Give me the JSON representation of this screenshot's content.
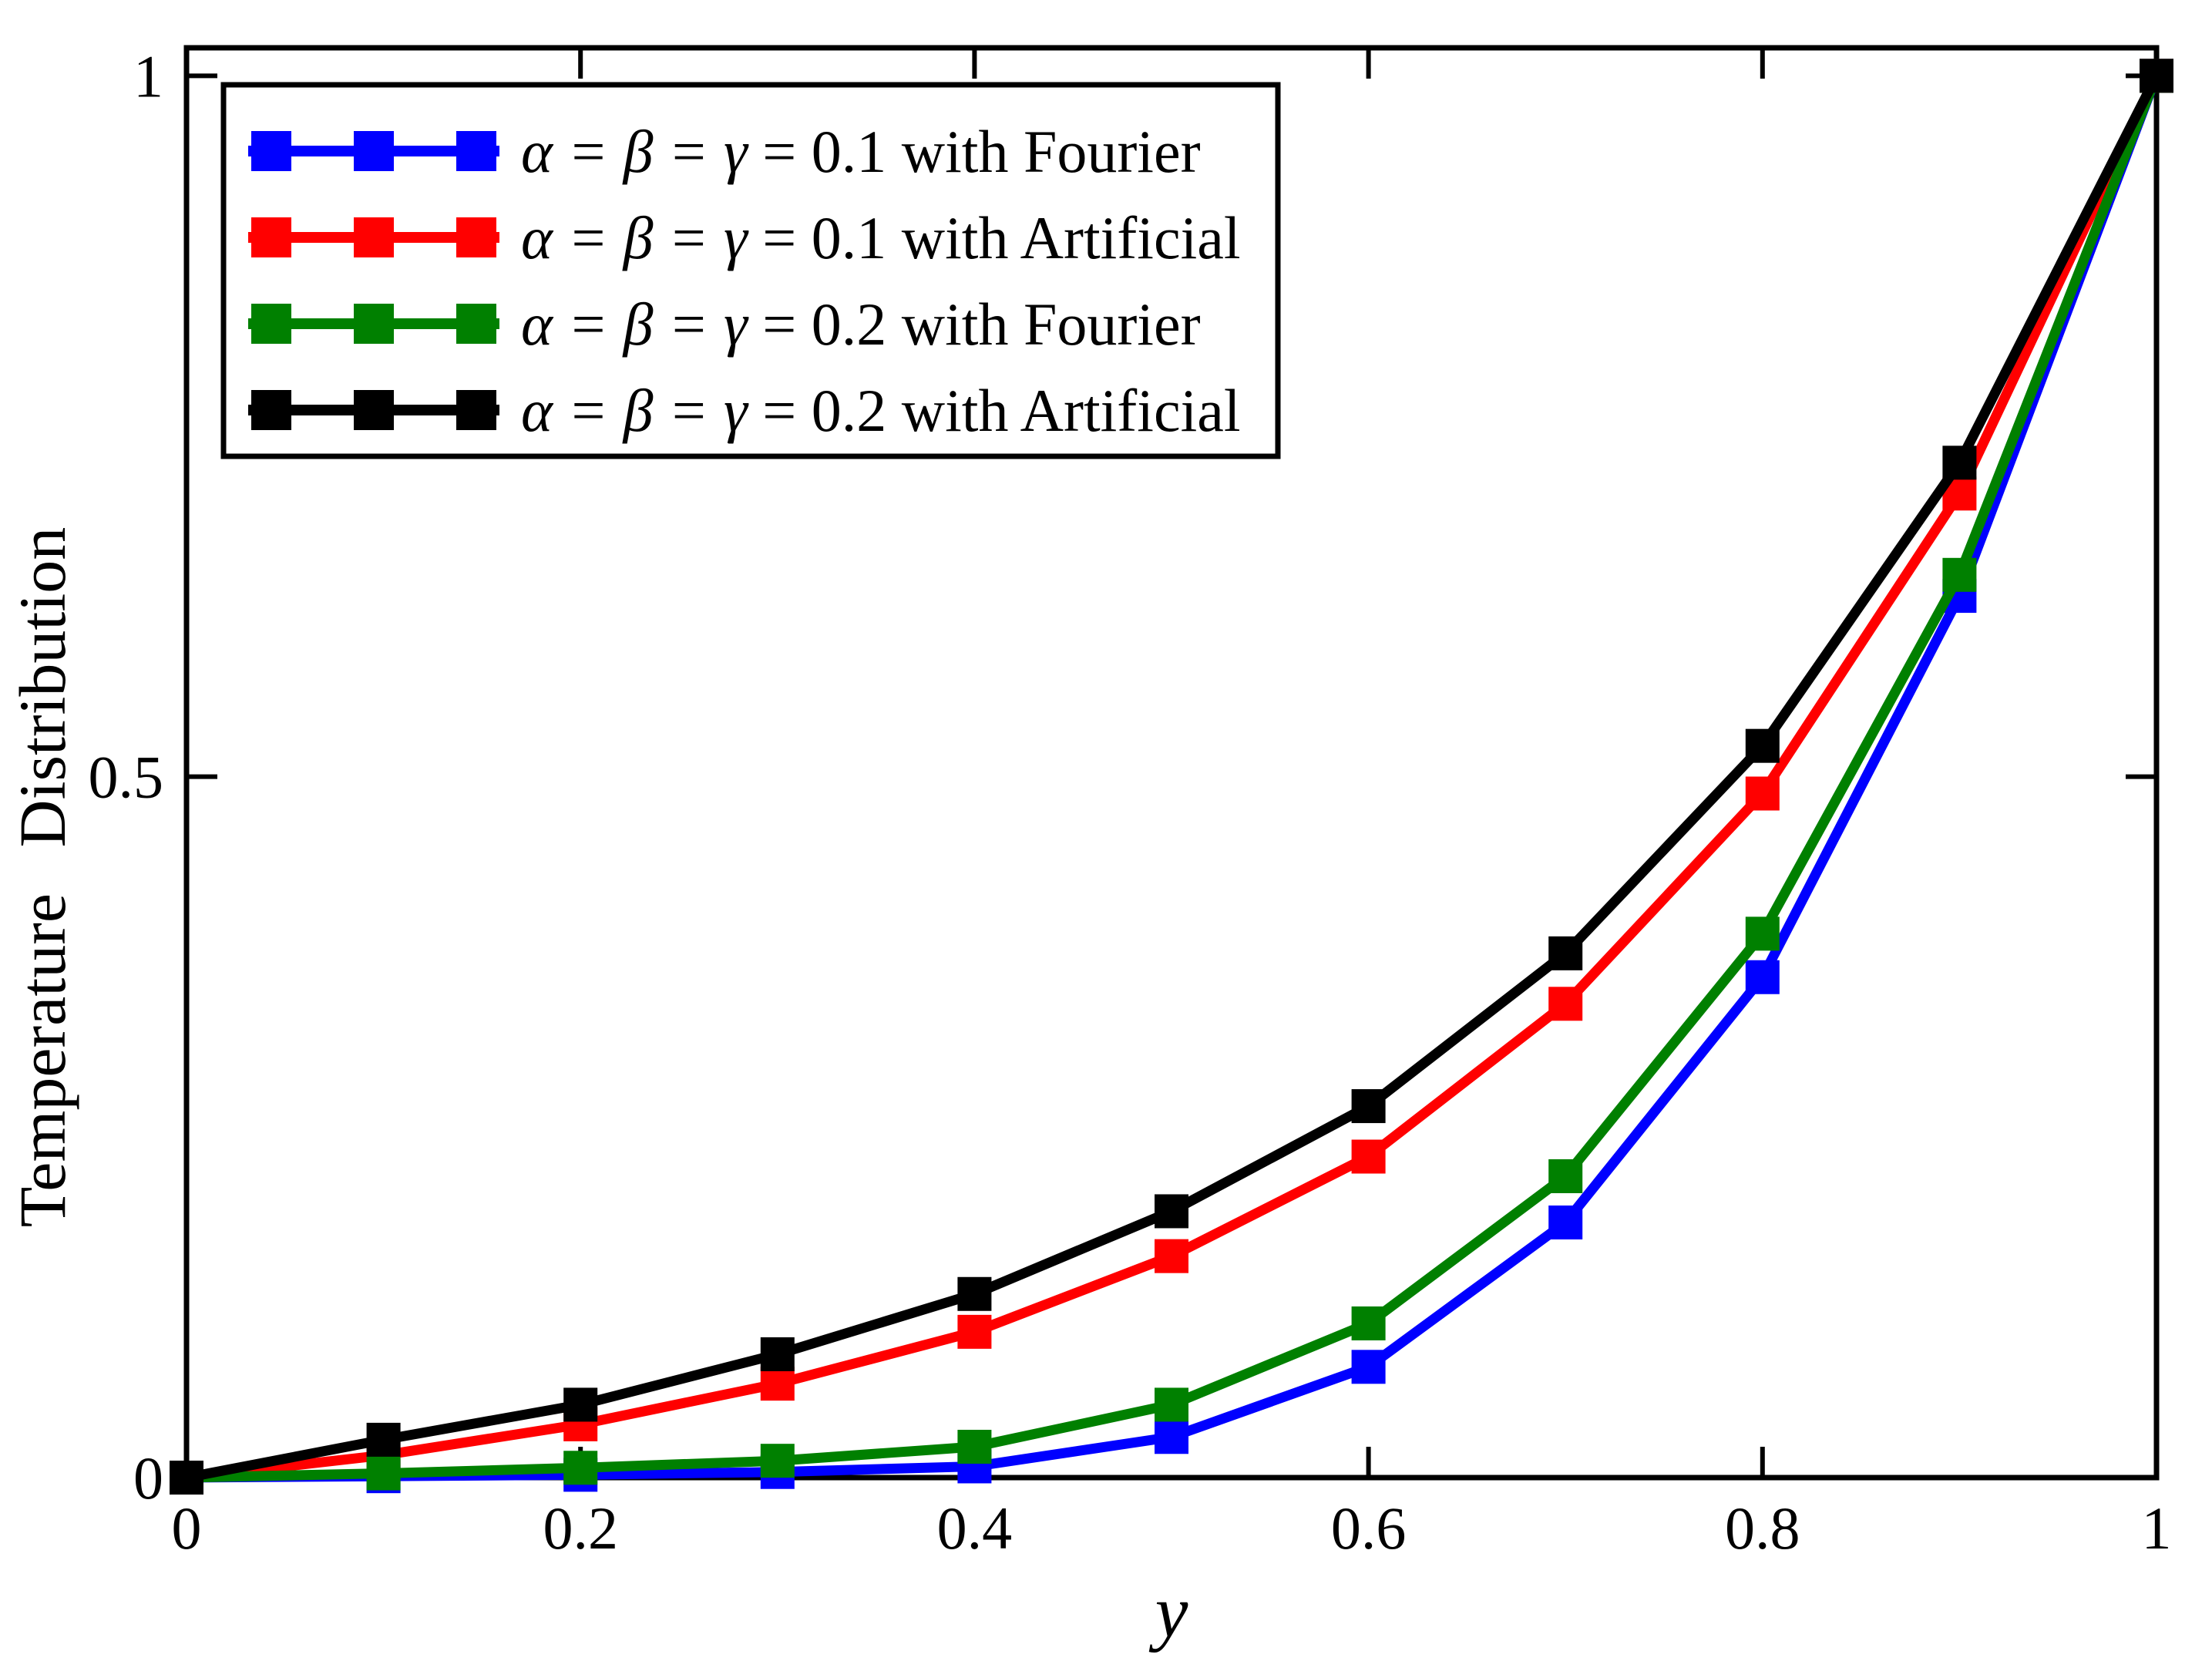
{
  "figure": {
    "background": "#ffffff",
    "axis_color": "#000000"
  },
  "chart_data": {
    "type": "line",
    "title": "",
    "xlabel": "y",
    "ylabel": "Temperature Distribution",
    "xlim": [
      0,
      1
    ],
    "ylim": [
      0,
      1.02
    ],
    "grid": false,
    "marker": "square",
    "xticks": {
      "values": [
        0,
        0.2,
        0.4,
        0.6,
        0.8,
        1
      ],
      "labels": [
        "0",
        "0.2",
        "0.4",
        "0.6",
        "0.8",
        "1"
      ]
    },
    "yticks": {
      "values": [
        0,
        0.5,
        1
      ],
      "labels": [
        "0",
        "0.5",
        "1"
      ]
    },
    "x": [
      0,
      0.1,
      0.2,
      0.3,
      0.4,
      0.5,
      0.6,
      0.7,
      0.8,
      0.9,
      1.0
    ],
    "legend": {
      "position": "top-left",
      "border": true
    },
    "series": [
      {
        "name": "alpha-beta-gamma-0.1-fourier",
        "color": "#0000ff",
        "legend_greek": "α = β = γ",
        "legend_rest": " = 0.1 with Fourier",
        "values": [
          0,
          0.001,
          0.002,
          0.004,
          0.008,
          0.029,
          0.079,
          0.182,
          0.357,
          0.629,
          1.0
        ]
      },
      {
        "name": "alpha-beta-gamma-0.1-artificial",
        "color": "#ff0000",
        "legend_greek": "α = β = γ",
        "legend_rest": " = 0.1 with Artificial",
        "values": [
          0,
          0.016,
          0.038,
          0.067,
          0.104,
          0.158,
          0.229,
          0.338,
          0.488,
          0.702,
          1.0
        ]
      },
      {
        "name": "alpha-beta-gamma-0.2-fourier",
        "color": "#008000",
        "legend_greek": "α = β = γ",
        "legend_rest": " = 0.2 with Fourier",
        "values": [
          0,
          0.003,
          0.007,
          0.012,
          0.022,
          0.052,
          0.11,
          0.215,
          0.388,
          0.644,
          1.0
        ]
      },
      {
        "name": "alpha-beta-gamma-0.2-artificial",
        "color": "#000000",
        "legend_greek": "α = β = γ",
        "legend_rest": " = 0.2 with Artificial",
        "values": [
          0,
          0.027,
          0.052,
          0.088,
          0.131,
          0.19,
          0.265,
          0.374,
          0.522,
          0.724,
          1.0
        ]
      }
    ]
  }
}
